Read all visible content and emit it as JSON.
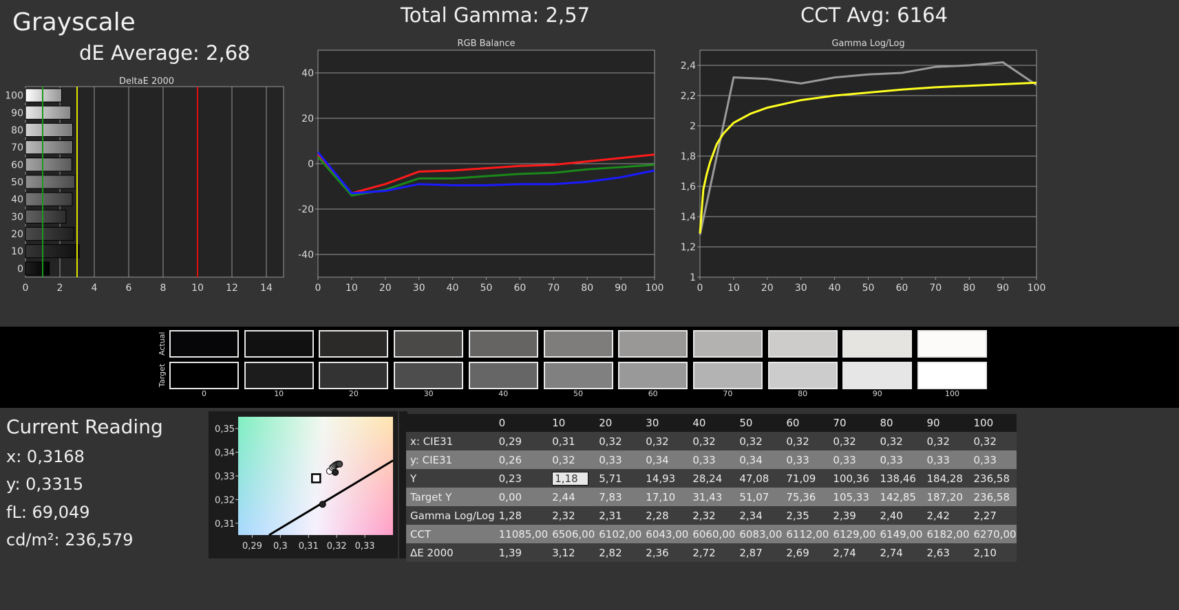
{
  "header": {
    "title": "Grayscale",
    "de_average": "dE Average: 2,68",
    "total_gamma": "Total Gamma: 2,57",
    "cct_avg": "CCT Avg: 6164"
  },
  "chart_data": [
    {
      "type": "bar",
      "title": "DeltaE 2000",
      "orientation": "horizontal",
      "categories": [
        "0",
        "10",
        "20",
        "30",
        "40",
        "50",
        "60",
        "70",
        "80",
        "90",
        "100"
      ],
      "values": [
        1.39,
        3.12,
        2.82,
        2.36,
        2.72,
        2.87,
        2.69,
        2.74,
        2.74,
        2.63,
        2.1
      ],
      "xlim": [
        0,
        15
      ],
      "xticks": [
        0,
        2,
        4,
        6,
        8,
        10,
        12,
        14
      ],
      "reference_lines": [
        {
          "value": 1,
          "color": "#1a9a1a"
        },
        {
          "value": 3,
          "color": "#e6e600"
        },
        {
          "value": 10,
          "color": "#e01010"
        }
      ],
      "grid": true
    },
    {
      "type": "line",
      "title": "RGB Balance",
      "x": [
        0,
        10,
        20,
        30,
        40,
        50,
        60,
        70,
        80,
        90,
        100
      ],
      "ylim": [
        -50,
        50
      ],
      "yticks": [
        -40,
        -20,
        0,
        20,
        40
      ],
      "xticks": [
        0,
        10,
        20,
        30,
        40,
        50,
        60,
        70,
        80,
        90,
        100
      ],
      "grid": true,
      "series": [
        {
          "color": "#ff1a1a",
          "values": [
            4,
            -13,
            -9,
            -3.5,
            -3,
            -2,
            -1,
            -0.5,
            1,
            2.5,
            4
          ]
        },
        {
          "color": "#1a8a1a",
          "values": [
            3,
            -14,
            -11.5,
            -6.5,
            -6.5,
            -5.5,
            -4.5,
            -4,
            -2.5,
            -1.5,
            -0.5
          ]
        },
        {
          "color": "#1a1aff",
          "values": [
            5,
            -13,
            -12,
            -9,
            -9.5,
            -9.5,
            -9,
            -9,
            -8,
            -6,
            -3
          ]
        }
      ]
    },
    {
      "type": "line",
      "title": "Gamma Log/Log",
      "ylim": [
        1,
        2.5
      ],
      "yticks": [
        "1",
        "1,2",
        "1,4",
        "1,6",
        "1,8",
        "2",
        "2,2",
        "2,4"
      ],
      "xticks": [
        0,
        10,
        20,
        30,
        40,
        50,
        60,
        70,
        80,
        90,
        100
      ],
      "grid": true,
      "series": [
        {
          "color": "#9a9a9a",
          "x": [
            0,
            10,
            20,
            30,
            40,
            50,
            60,
            70,
            80,
            90,
            100
          ],
          "values": [
            1.28,
            2.32,
            2.31,
            2.28,
            2.32,
            2.34,
            2.35,
            2.39,
            2.4,
            2.42,
            2.27
          ]
        },
        {
          "color": "#ffff20",
          "x": [
            0,
            1,
            2,
            3,
            5,
            7,
            10,
            15,
            20,
            30,
            40,
            50,
            60,
            70,
            80,
            90,
            100
          ],
          "values": [
            1.29,
            1.58,
            1.68,
            1.76,
            1.88,
            1.95,
            2.02,
            2.08,
            2.12,
            2.17,
            2.2,
            2.22,
            2.24,
            2.255,
            2.265,
            2.275,
            2.285
          ]
        }
      ]
    },
    {
      "type": "scatter",
      "title": "",
      "xlim": [
        0.285,
        0.34
      ],
      "ylim": [
        0.305,
        0.355
      ],
      "xticks": [
        "0,29",
        "0,3",
        "0,31",
        "0,32",
        "0,33"
      ],
      "yticks": [
        "0,31",
        "0,32",
        "0,33",
        "0,34",
        "0,35"
      ],
      "target_point": [
        0.3127,
        0.329
      ],
      "points": [
        [
          0.315,
          0.318
        ],
        [
          0.3175,
          0.332
        ],
        [
          0.3185,
          0.3335
        ],
        [
          0.319,
          0.334
        ],
        [
          0.3195,
          0.3345
        ],
        [
          0.32,
          0.3348
        ],
        [
          0.3205,
          0.335
        ],
        [
          0.321,
          0.335
        ],
        [
          0.3195,
          0.3315
        ]
      ]
    }
  ],
  "swatches": {
    "actual_label": "Actual",
    "target_label": "Target",
    "labels": [
      "0",
      "10",
      "20",
      "30",
      "40",
      "50",
      "60",
      "70",
      "80",
      "90",
      "100"
    ],
    "actual": [
      "#060609",
      "#121112",
      "#2b2a28",
      "#4a4948",
      "#656462",
      "#7f7d7b",
      "#9a9896",
      "#b3b2b0",
      "#cdccca",
      "#e6e4e0",
      "#fdfbf9"
    ],
    "target": [
      "#000000",
      "#1c1c1c",
      "#333333",
      "#4d4d4d",
      "#666666",
      "#808080",
      "#999999",
      "#b3b3b3",
      "#cccccc",
      "#e6e6e6",
      "#ffffff"
    ]
  },
  "reading": {
    "title": "Current Reading",
    "x": "x: 0,3168",
    "y": "y: 0,3315",
    "fl": "fL: 69,049",
    "cd": "cd/m²: 236,579"
  },
  "table": {
    "headers": [
      "",
      "0",
      "10",
      "20",
      "30",
      "40",
      "50",
      "60",
      "70",
      "80",
      "90",
      "100"
    ],
    "rows": [
      [
        "x: CIE31",
        "0,29",
        "0,31",
        "0,32",
        "0,32",
        "0,32",
        "0,32",
        "0,32",
        "0,32",
        "0,32",
        "0,32",
        "0,32"
      ],
      [
        "y: CIE31",
        "0,26",
        "0,32",
        "0,33",
        "0,34",
        "0,33",
        "0,34",
        "0,33",
        "0,33",
        "0,33",
        "0,33",
        "0,33"
      ],
      [
        "Y",
        "0,23",
        "1,18",
        "5,71",
        "14,93",
        "28,24",
        "47,08",
        "71,09",
        "100,36",
        "138,46",
        "184,28",
        "236,58"
      ],
      [
        "Target Y",
        "0,00",
        "2,44",
        "7,83",
        "17,10",
        "31,43",
        "51,07",
        "75,36",
        "105,33",
        "142,85",
        "187,20",
        "236,58"
      ],
      [
        "Gamma Log/Log",
        "1,28",
        "2,32",
        "2,31",
        "2,28",
        "2,32",
        "2,34",
        "2,35",
        "2,39",
        "2,40",
        "2,42",
        "2,27"
      ],
      [
        "CCT",
        "11085,00",
        "6506,00",
        "6102,00",
        "6043,00",
        "6060,00",
        "6083,00",
        "6112,00",
        "6129,00",
        "6149,00",
        "6182,00",
        "6270,00"
      ],
      [
        "ΔE 2000",
        "1,39",
        "3,12",
        "2,82",
        "2,36",
        "2,72",
        "2,87",
        "2,69",
        "2,74",
        "2,74",
        "2,63",
        "2,10"
      ]
    ]
  }
}
